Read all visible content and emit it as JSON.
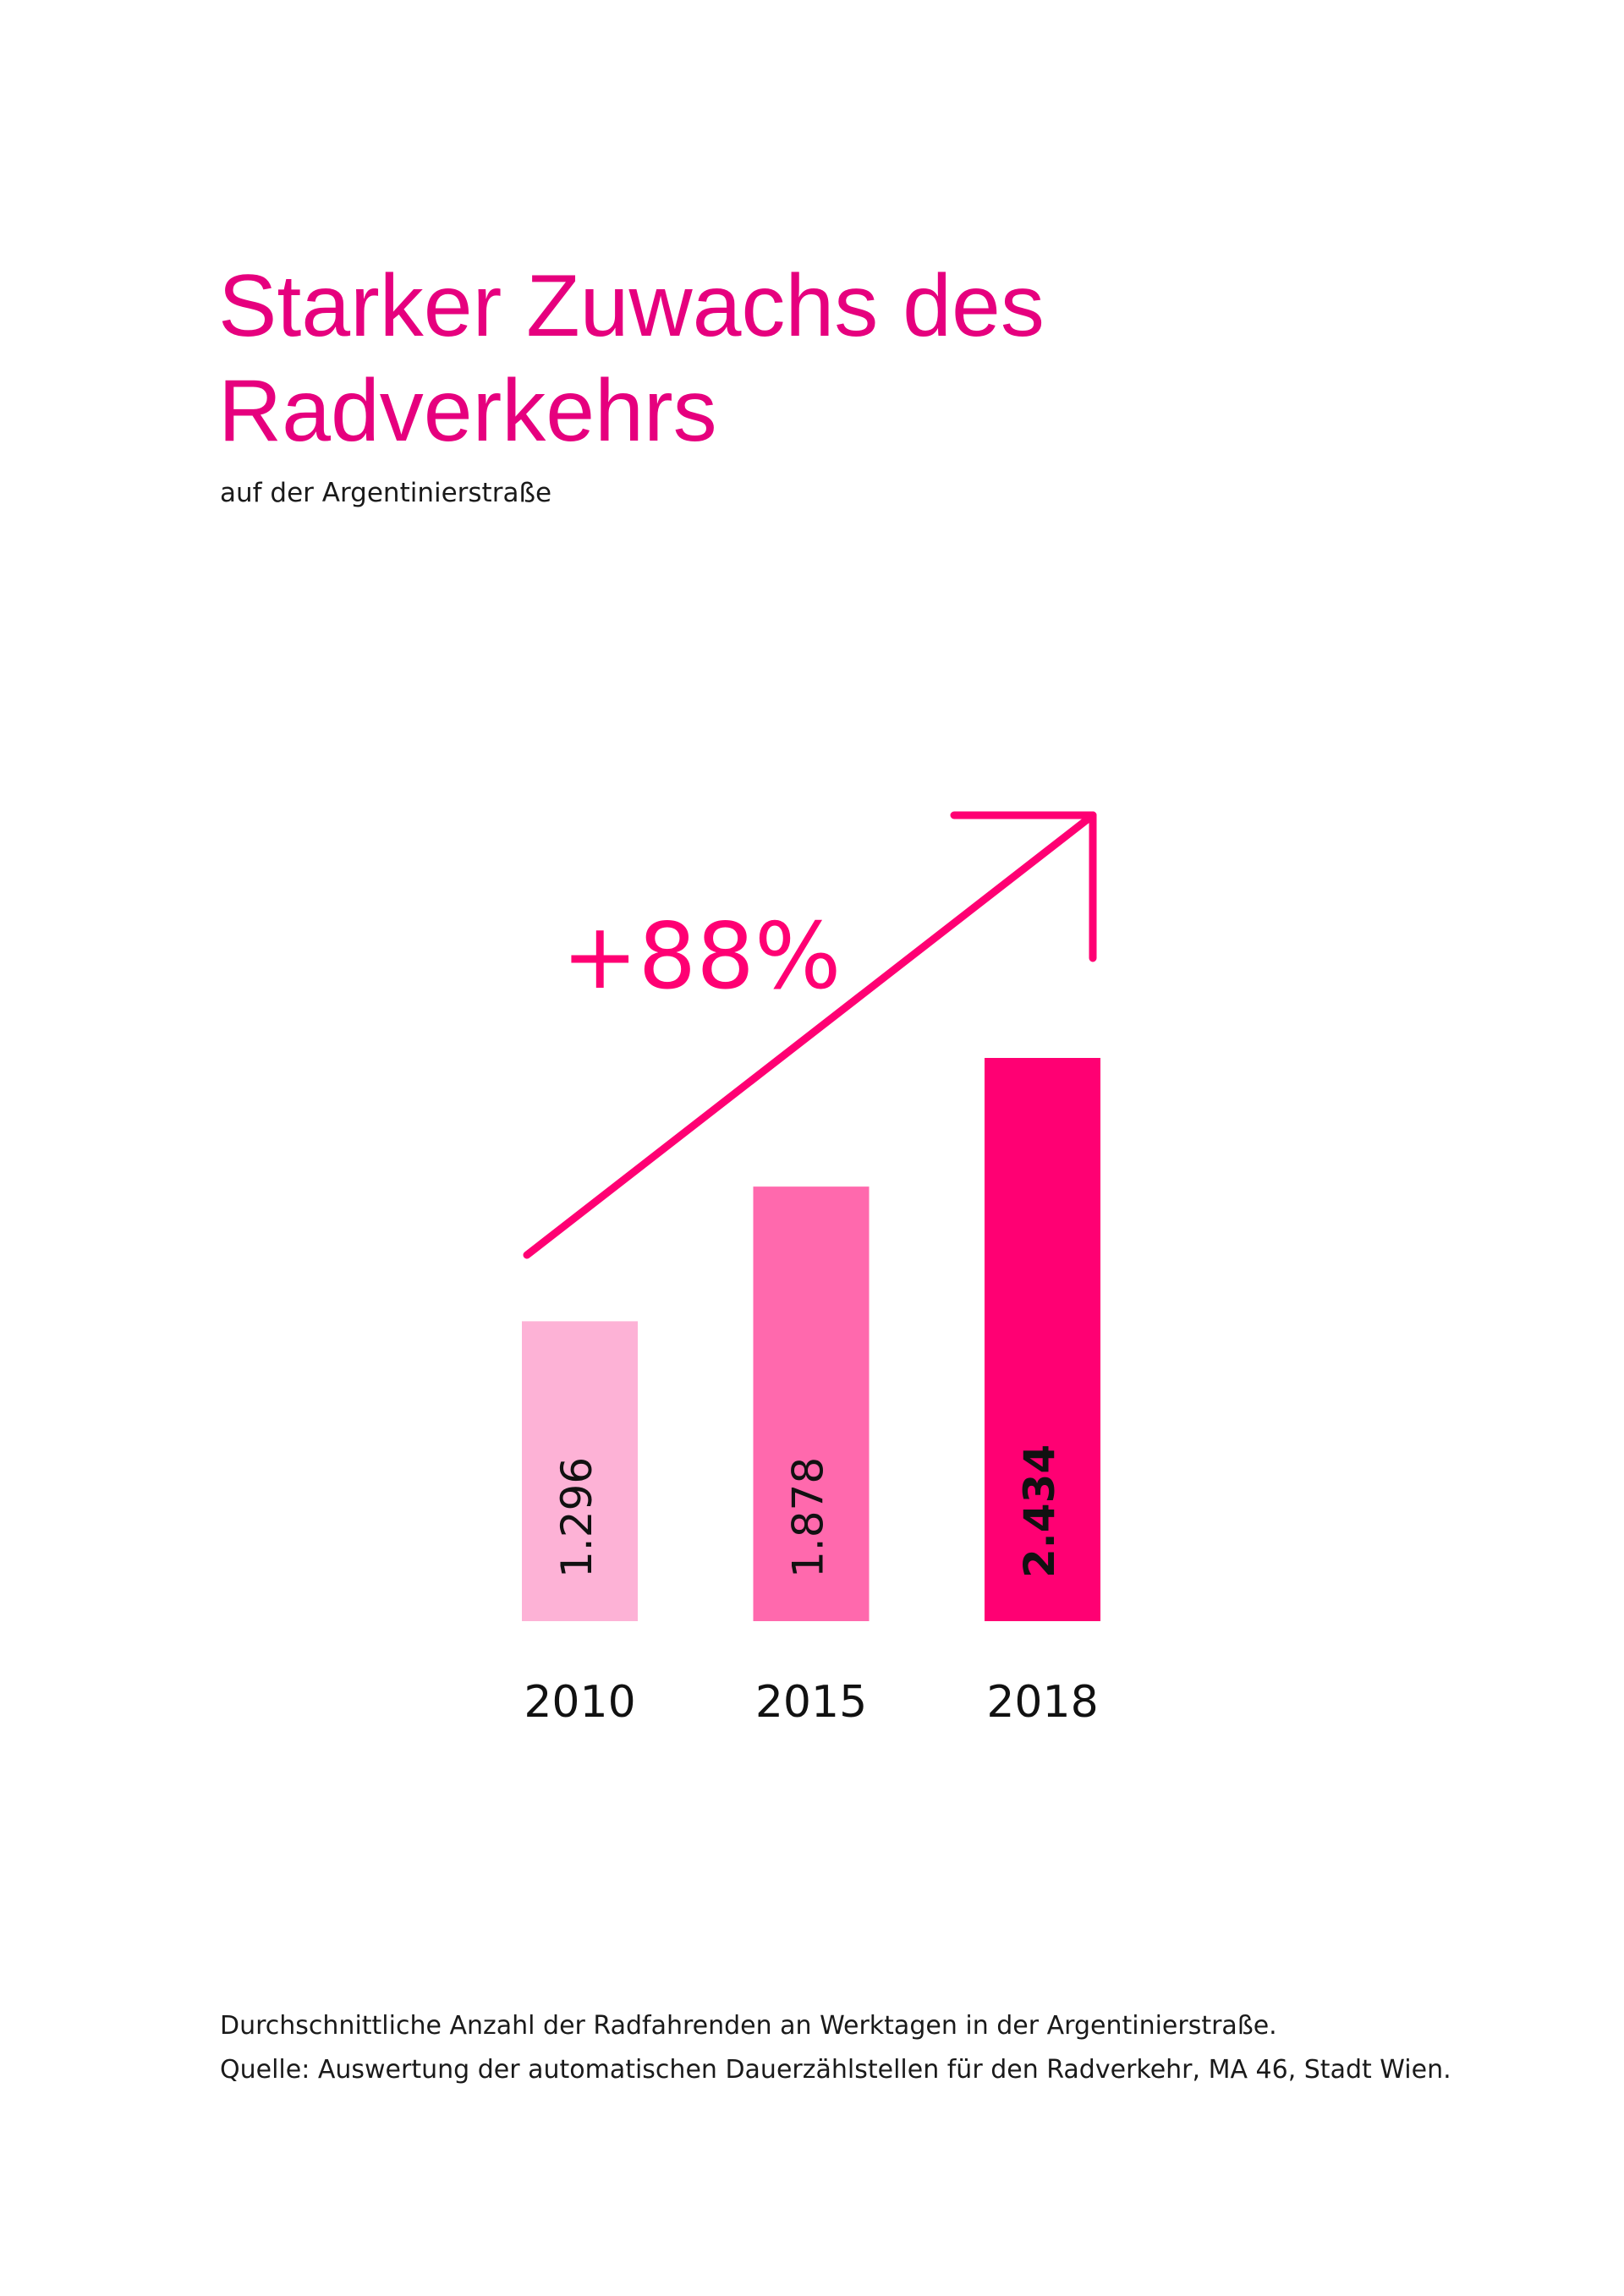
{
  "chart_data": {
    "type": "bar",
    "title": "Starker Zuwachs des Radverkehrs",
    "subtitle": "auf der Argentinierstraße",
    "annotation": "+88%",
    "categories": [
      "2010",
      "2015",
      "2018"
    ],
    "values": [
      1296,
      1878,
      2434
    ],
    "value_labels": [
      "1.296",
      "1.878",
      "2.434"
    ],
    "colors": [
      "#fdb2d6",
      "#ff69ad",
      "#ff0073"
    ],
    "caption": "Durchschnittliche Anzahl der Radfahrenden an Werktagen in der Argentinierstraße.",
    "source": "Quelle: Auswertung der automatischen Dauerzählstellen für den Radverkehr, MA 46, Stadt Wien."
  }
}
